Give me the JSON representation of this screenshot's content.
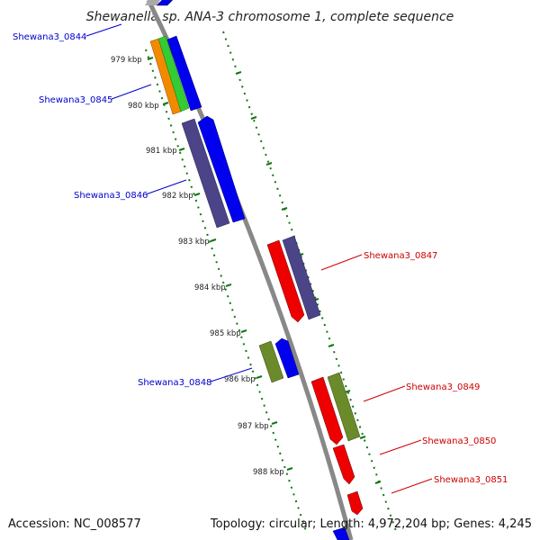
{
  "title": "Shewanella sp. ANA-3 chromosome 1, complete sequence",
  "accession": "Accession: NC_008577",
  "summary": "Topology: circular; Length: 4,972,204 bp; Genes: 4,245",
  "ruler_labels": [
    "979 kbp",
    "980 kbp",
    "981 kbp",
    "982 kbp",
    "983 kbp",
    "984 kbp",
    "985 kbp",
    "986 kbp",
    "987 kbp",
    "988 kbp"
  ],
  "genes": [
    {
      "id": "Shewana3_0844",
      "strand": "left",
      "color": "#0000cc"
    },
    {
      "id": "Shewana3_0845",
      "strand": "left",
      "color": "#0000cc"
    },
    {
      "id": "Shewana3_0846",
      "strand": "left",
      "color": "#0000cc"
    },
    {
      "id": "Shewana3_0847",
      "strand": "right",
      "color": "#cc0000"
    },
    {
      "id": "Shewana3_0848",
      "strand": "left",
      "color": "#0000cc"
    },
    {
      "id": "Shewana3_0849",
      "strand": "right",
      "color": "#cc0000"
    },
    {
      "id": "Shewana3_0850",
      "strand": "right",
      "color": "#cc0000"
    },
    {
      "id": "Shewana3_0851",
      "strand": "right",
      "color": "#cc0000"
    }
  ],
  "colors": {
    "forward": "#0000ee",
    "reverse": "#ee0000",
    "cog_purple": "#4b4488",
    "cog_olive": "#6b8a2a",
    "cog_orange": "#f28a00",
    "cog_green": "#33cc33",
    "backbone": "#888888",
    "tick": "#117711"
  }
}
